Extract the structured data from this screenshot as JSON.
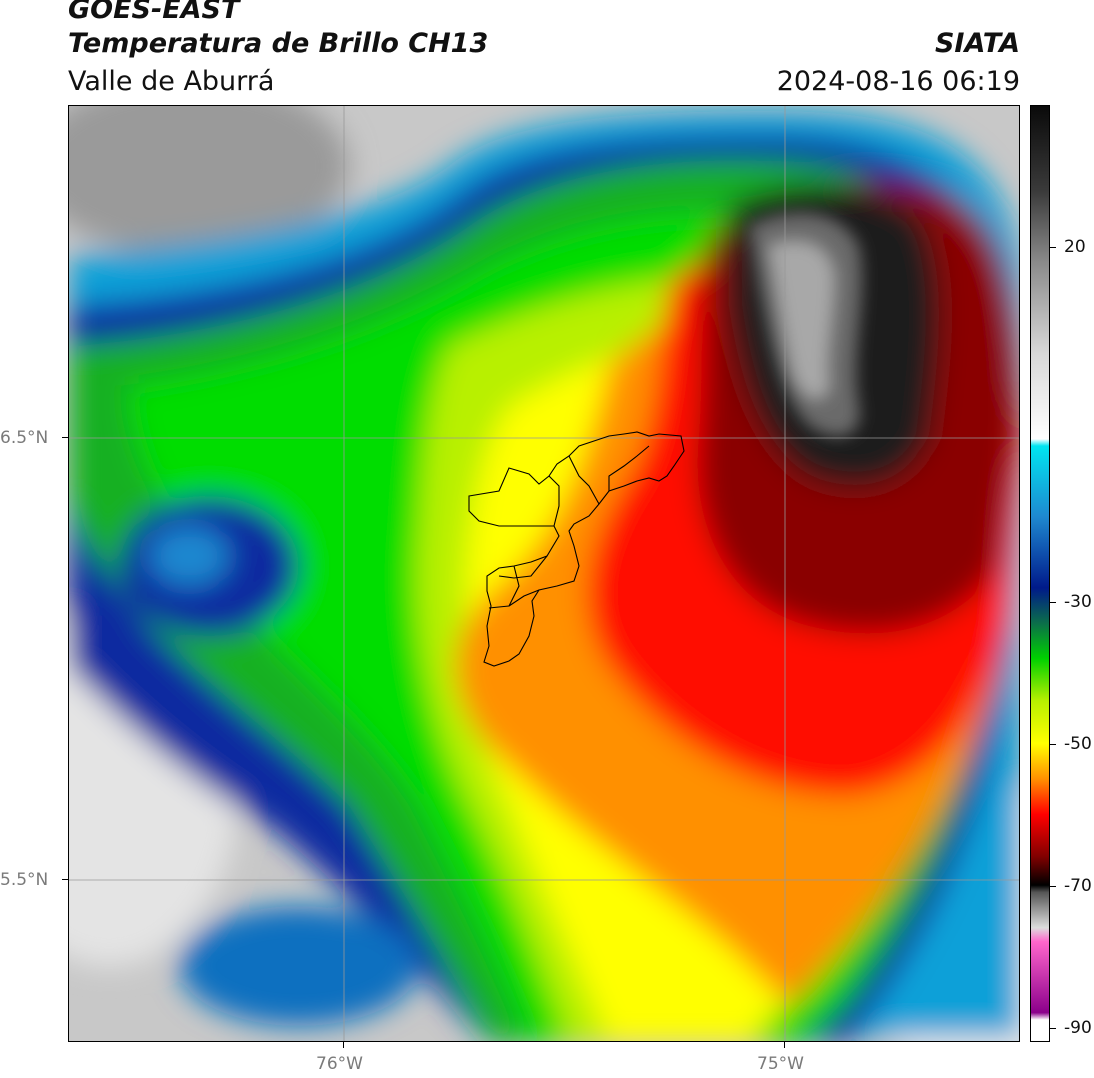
{
  "header": {
    "title": "GOES-EAST",
    "subtitle": "Temperatura de Brillo CH13",
    "region": "Valle de Aburrá",
    "organization": "SIATA",
    "datetime": "2024-08-16 06:19"
  },
  "map": {
    "lat_labels": [
      "6.5°N",
      "5.5°N"
    ],
    "lon_labels": [
      "76°W",
      "75°W"
    ]
  },
  "colorbar": {
    "ticks": [
      "20",
      "-30",
      "-50",
      "-70",
      "-90"
    ],
    "tick_values": [
      20,
      -30,
      -50,
      -70,
      -90
    ],
    "range": [
      -92,
      40
    ],
    "stops": [
      {
        "v": 40,
        "c": "#0a0a0a"
      },
      {
        "v": 28,
        "c": "#3a3a3a"
      },
      {
        "v": 18,
        "c": "#8a8a8a"
      },
      {
        "v": 5,
        "c": "#d8d8d8"
      },
      {
        "v": -7,
        "c": "#ffffff"
      },
      {
        "v": -8,
        "c": "#00e5f0"
      },
      {
        "v": -18,
        "c": "#1e88d0"
      },
      {
        "v": -28,
        "c": "#001a8a"
      },
      {
        "v": -33,
        "c": "#0b6e4a"
      },
      {
        "v": -38,
        "c": "#00d000"
      },
      {
        "v": -44,
        "c": "#b8f000"
      },
      {
        "v": -50,
        "c": "#ffff00"
      },
      {
        "v": -55,
        "c": "#ff9000"
      },
      {
        "v": -60,
        "c": "#ff0000"
      },
      {
        "v": -66,
        "c": "#800000"
      },
      {
        "v": -70,
        "c": "#000000"
      },
      {
        "v": -71,
        "c": "#555555"
      },
      {
        "v": -76,
        "c": "#dddddd"
      },
      {
        "v": -78,
        "c": "#ff66cc"
      },
      {
        "v": -88,
        "c": "#8b008b"
      },
      {
        "v": -89,
        "c": "#ffffff"
      },
      {
        "v": -92,
        "c": "#ffffff"
      }
    ]
  }
}
